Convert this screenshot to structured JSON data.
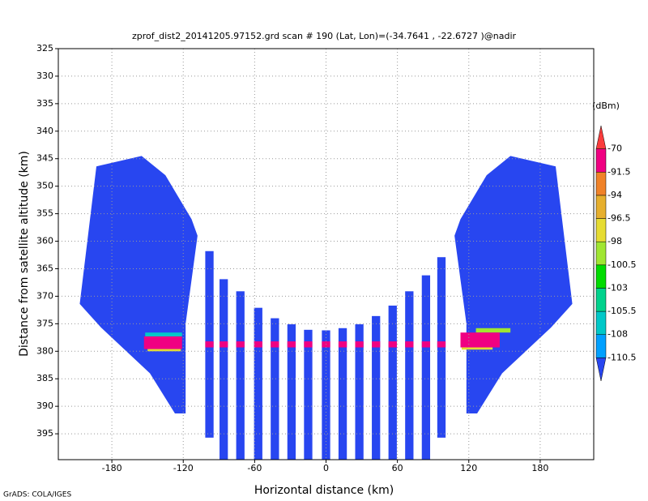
{
  "chart_data": {
    "type": "field",
    "title": "zprof_dist2_20141205.97152.grd  scan # 190  (Lat, Lon)=(-34.7641 , -22.6727 )@nadir",
    "x_label": "Horizontal distance (km)",
    "y_label": "Distance from satellite altitude (km)",
    "footer": "GrADS: COLA/IGES",
    "colorbar_unit": "(dBm)",
    "xlim": [
      -225,
      225
    ],
    "ylim": [
      325,
      399.7
    ],
    "y_inverted": true,
    "xticks": [
      -180,
      -120,
      -60,
      0,
      60,
      120,
      180
    ],
    "yticks": [
      325,
      330,
      335,
      340,
      345,
      350,
      355,
      360,
      365,
      370,
      375,
      380,
      385,
      390,
      395
    ],
    "grid": true,
    "levels": [
      -110.5,
      -108,
      -105.5,
      -103,
      -100.5,
      -98,
      -96.5,
      -94,
      -91.5,
      -70
    ],
    "level_colors": [
      "#2846f0",
      "#00a0ff",
      "#00c8c8",
      "#00d28c",
      "#00dc00",
      "#a0e632",
      "#e6dc32",
      "#e6af2d",
      "#f08228",
      "#f00082",
      "#fa3c3c"
    ],
    "blocks": [
      {
        "color": "#2846f0",
        "x": [
          -207,
          -193,
          -155,
          -135,
          -113,
          -108,
          -118,
          -118,
          -127,
          -148,
          -189
        ],
        "y": [
          371.4,
          346.4,
          344.5,
          348,
          356,
          359,
          375,
          391.3,
          391.3,
          384,
          375.7
        ]
      },
      {
        "color": "#2846f0",
        "x": [
          207,
          193,
          155,
          135,
          113,
          108,
          118,
          118,
          127,
          148,
          189
        ],
        "y": [
          371.4,
          346.4,
          344.5,
          348,
          356,
          359,
          375,
          391.3,
          391.3,
          384,
          375.7
        ]
      }
    ],
    "beams": {
      "color": "#2846f0",
      "x": [
        -98,
        -86,
        -72,
        -57,
        -43,
        -29,
        -15,
        0,
        14,
        28,
        42,
        56,
        70,
        84,
        97
      ],
      "top": [
        361.8,
        366.9,
        369.1,
        372.1,
        374,
        375.1,
        376.1,
        376.2,
        375.8,
        375.1,
        373.6,
        371.7,
        369.1,
        366.2,
        362.9
      ],
      "bottom": [
        395.7,
        399.7,
        399.7,
        399.7,
        399.7,
        399.7,
        399.7,
        399.7,
        399.7,
        399.7,
        399.7,
        399.7,
        399.7,
        399.7,
        395.7
      ]
    },
    "bands": [
      {
        "color": "#00c8c8",
        "x0": -152,
        "x1": -121,
        "top": 376.6,
        "bottom": 377.3
      },
      {
        "color": "#f00082",
        "x0": -153,
        "x1": -121,
        "top": 377.3,
        "bottom": 379.6
      },
      {
        "color": "#e6dc32",
        "x0": -150,
        "x1": -122,
        "top": 379.6,
        "bottom": 380
      },
      {
        "color": "#a0e632",
        "x0": 126,
        "x1": 155,
        "top": 375.8,
        "bottom": 376.6
      },
      {
        "color": "#f00082",
        "x0": 113,
        "x1": 146,
        "top": 376.6,
        "bottom": 379.3
      },
      {
        "color": "#e6dc32",
        "x0": 114,
        "x1": 140,
        "top": 379.3,
        "bottom": 379.7
      }
    ],
    "beam_band": {
      "color": "#f00082",
      "top": 378.2,
      "bottom": 379.3
    }
  }
}
